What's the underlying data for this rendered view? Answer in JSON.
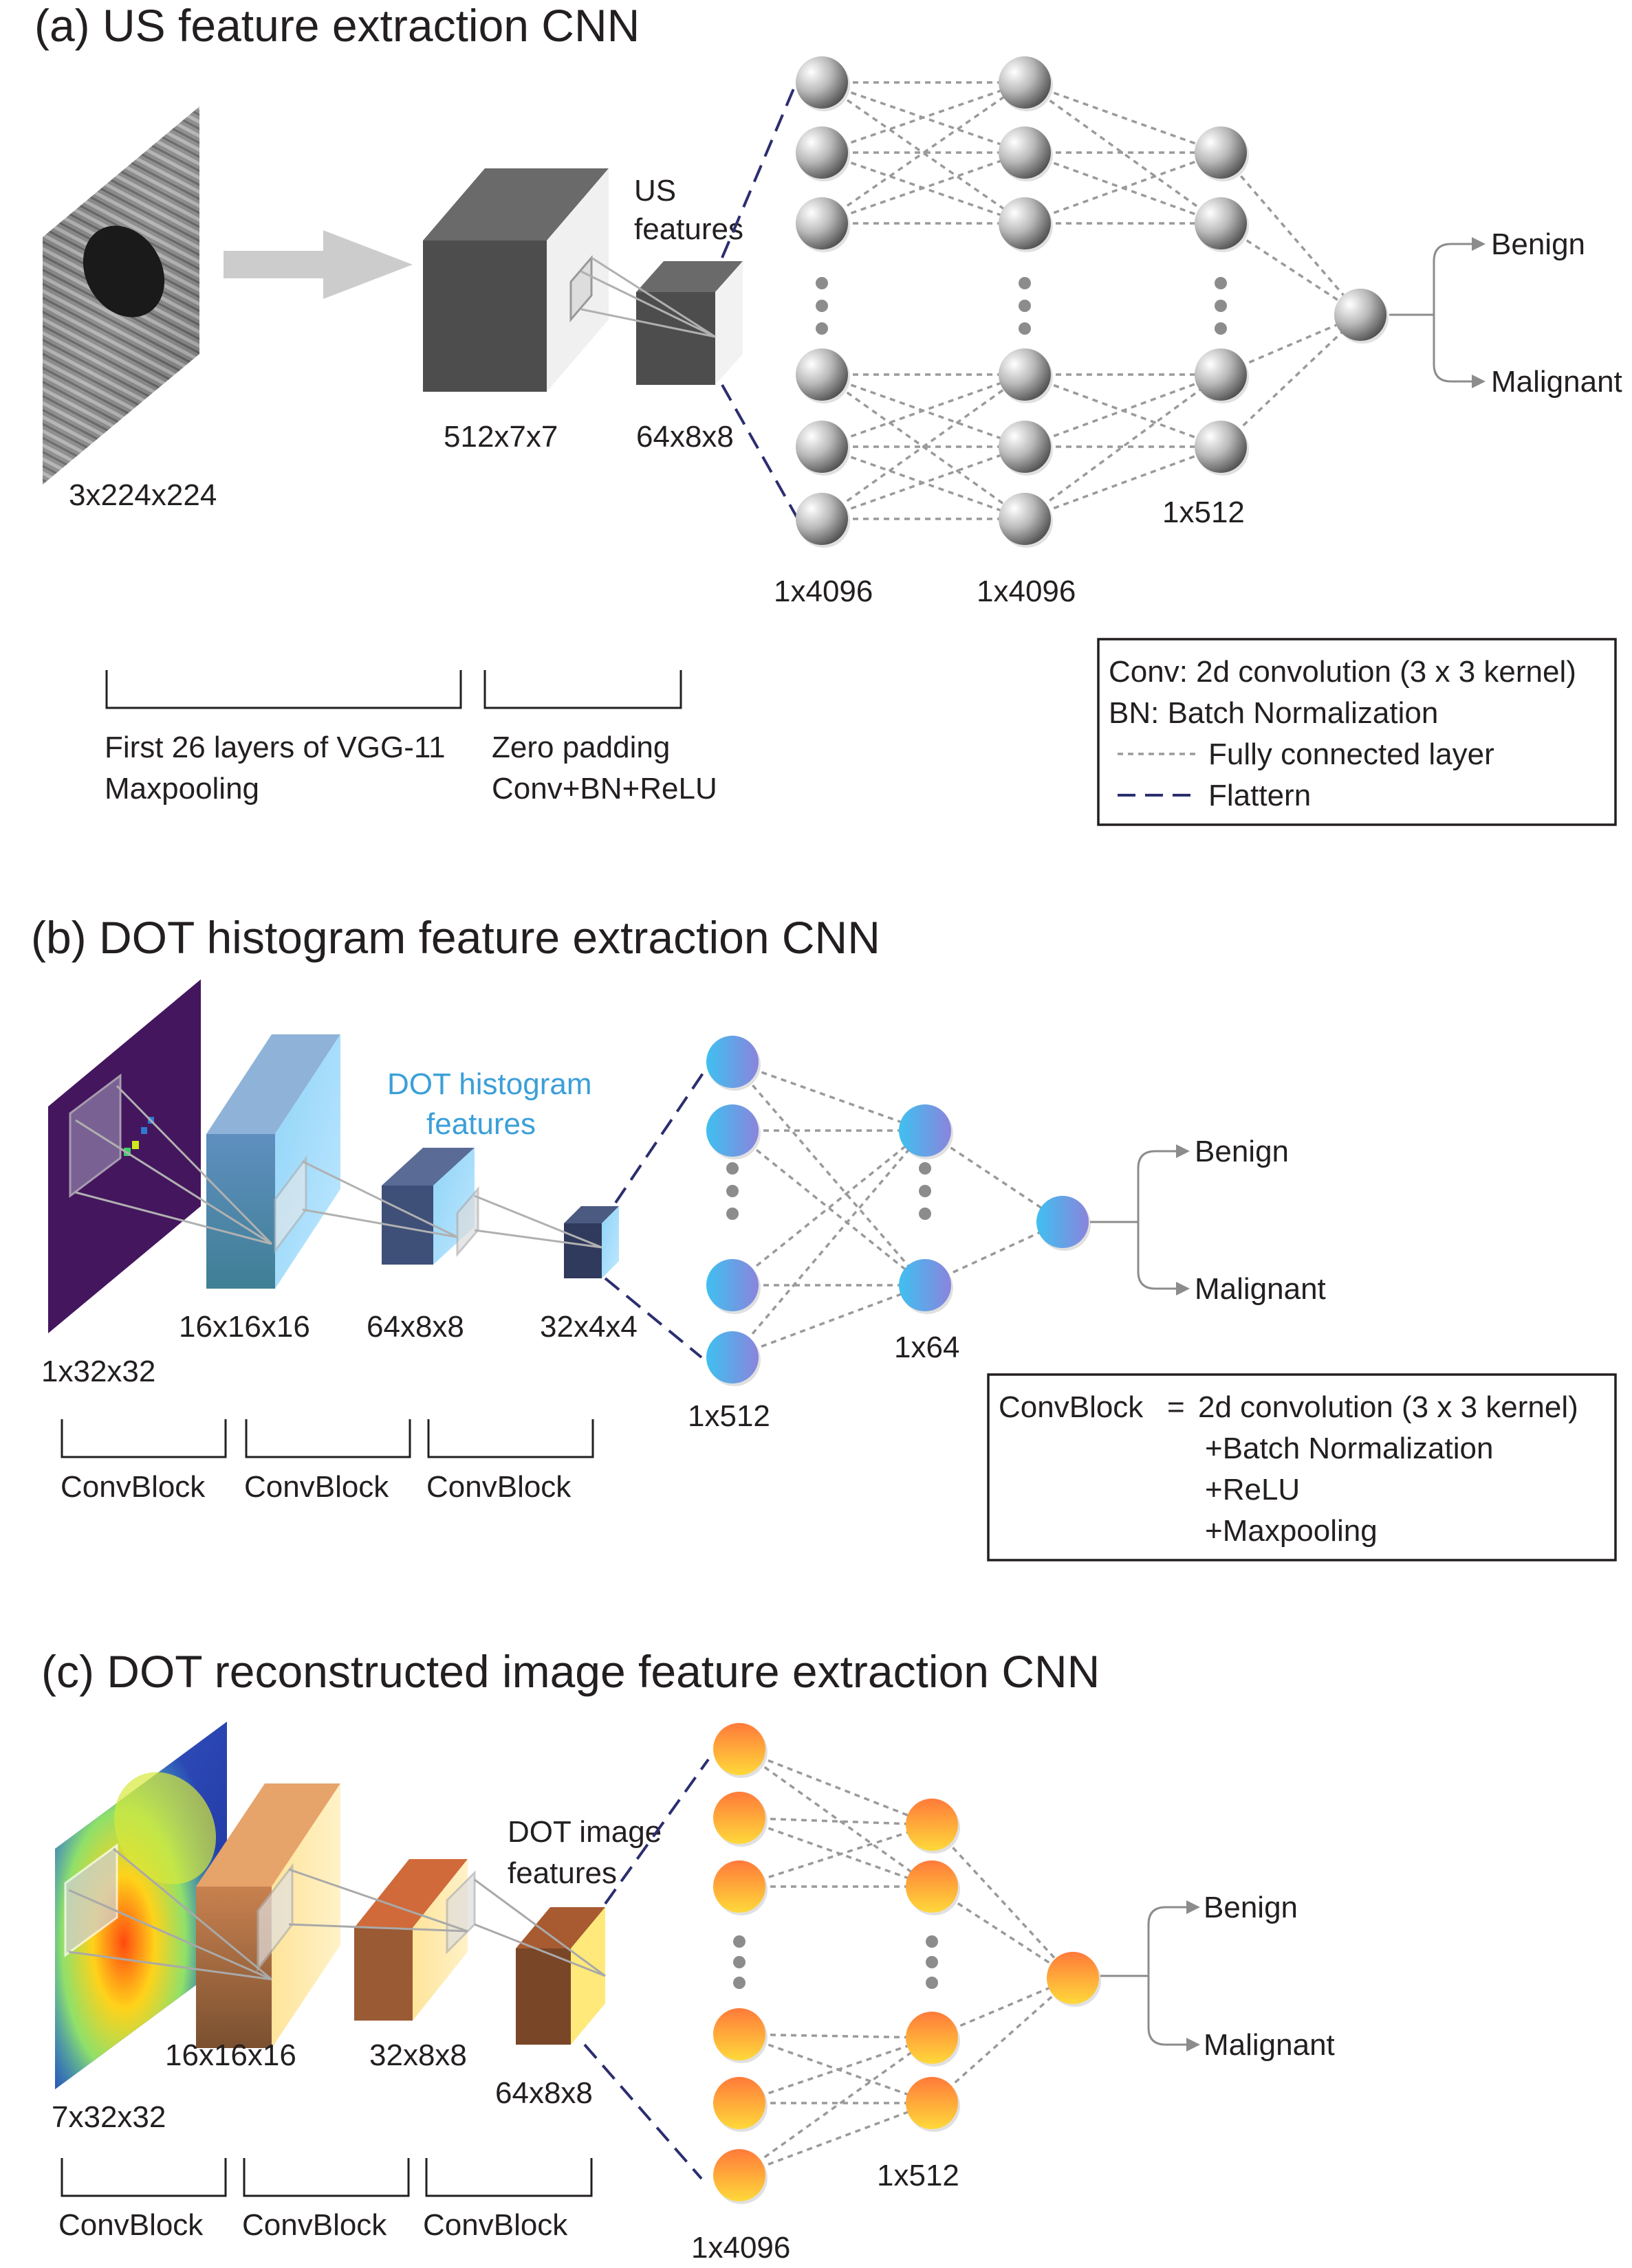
{
  "panel_a": {
    "title": "(a) US feature extraction CNN",
    "input_dim": "3x224x224",
    "block1_dim": "512x7x7",
    "block2_dim": "64x8x8",
    "features_label_line1": "US",
    "features_label_line2": "features",
    "fc1_dim": "1x4096",
    "fc2_dim": "1x4096",
    "fc3_dim": "1x512",
    "output_benign": "Benign",
    "output_malignant": "Malignant",
    "bracket1_line1": "First 26 layers of VGG-11",
    "bracket1_line2": "Maxpooling",
    "bracket2_line1": "Zero padding",
    "bracket2_line2": "Conv+BN+ReLU",
    "legend": {
      "line1": "Conv: 2d convolution (3 x 3 kernel)",
      "line2": "BN: Batch Normalization",
      "fc_label": "Fully connected layer",
      "flatten_label": "Flattern"
    }
  },
  "panel_b": {
    "title": "(b) DOT histogram feature extraction CNN",
    "input_dim": "1x32x32",
    "block1_dim": "16x16x16",
    "block2_dim": "64x8x8",
    "block3_dim": "32x4x4",
    "features_label_line1": "DOT histogram",
    "features_label_line2": "features",
    "fc1_dim": "1x512",
    "fc2_dim": "1x64",
    "output_benign": "Benign",
    "output_malignant": "Malignant",
    "convblock": [
      "ConvBlock",
      "ConvBlock",
      "ConvBlock"
    ],
    "legend": {
      "lhs": "ConvBlock",
      "eq": "=",
      "line1": "2d convolution (3 x 3 kernel)",
      "line2": "+Batch Normalization",
      "line3": "+ReLU",
      "line4": "+Maxpooling"
    }
  },
  "panel_c": {
    "title": "(c) DOT reconstructed image feature extraction CNN",
    "input_dim": "7x32x32",
    "block1_dim": "16x16x16",
    "block2_dim": "32x8x8",
    "block3_dim": "64x8x8",
    "features_label_line1": "DOT image",
    "features_label_line2": "features",
    "fc1_dim": "1x4096",
    "fc2_dim": "1x512",
    "output_benign": "Benign",
    "output_malignant": "Malignant",
    "convblock": [
      "ConvBlock",
      "ConvBlock",
      "ConvBlock"
    ]
  },
  "colors": {
    "text": "#231f20",
    "fc_line": "#9a9a9a",
    "flatten_line": "#2b2e6e",
    "blue_label": "#3b9fd8",
    "gray_node": "#8c8c8c",
    "blue_node": "#5aa8e8",
    "orange_node": "#f5a623"
  }
}
